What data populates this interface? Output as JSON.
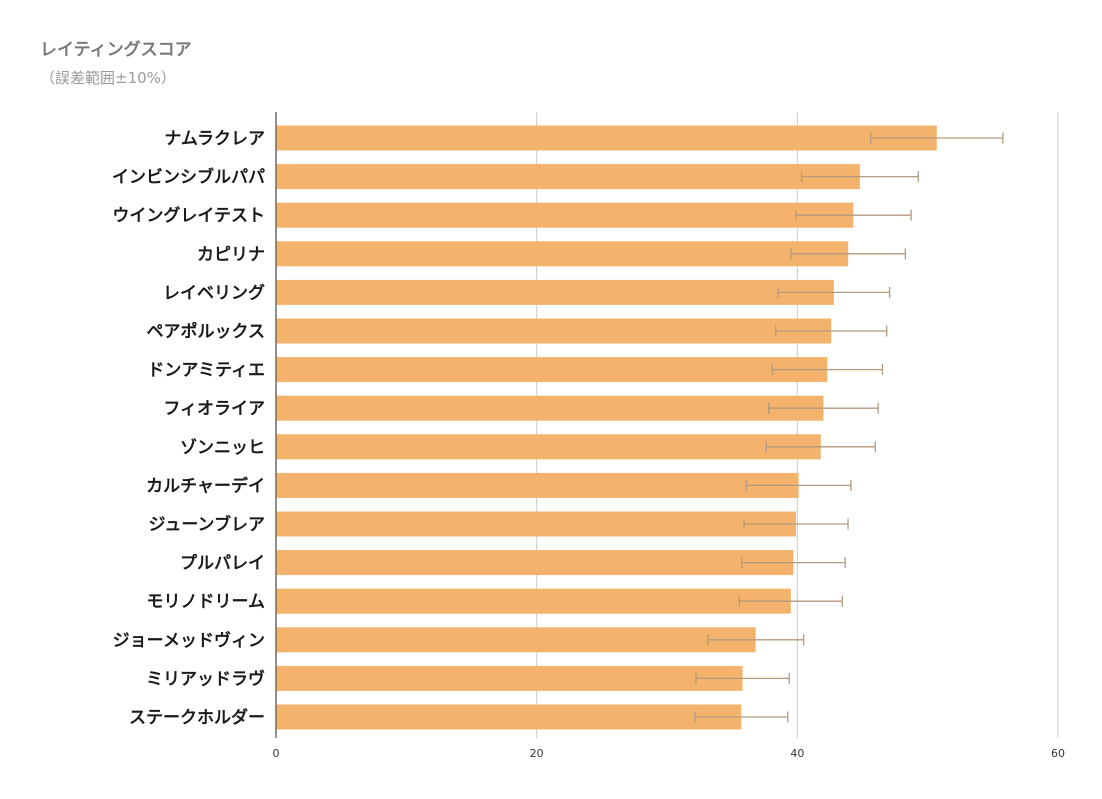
{
  "chart_title": "レイティングスコア",
  "chart_subtitle": "（誤差範囲±10%）",
  "chart_data": {
    "type": "bar",
    "orientation": "horizontal",
    "title": "レイティングスコア",
    "subtitle": "（誤差範囲±10%）",
    "xlabel": "",
    "ylabel": "",
    "xlim": [
      0,
      60
    ],
    "x_ticks": [
      0,
      20,
      40,
      60
    ],
    "grid": true,
    "bar_color": "#f4b36c",
    "error_bar_color": "#b49a7e",
    "error_percent": 10,
    "categories": [
      "ナムラクレア",
      "インビンシブルパパ",
      "ウイングレイテスト",
      "カピリナ",
      "レイベリング",
      "ペアポルックス",
      "ドンアミティエ",
      "フィオライア",
      "ゾンニッヒ",
      "カルチャーデイ",
      "ジューンブレア",
      "プルパレイ",
      "モリノドリーム",
      "ジョーメッドヴィン",
      "ミリアッドラヴ",
      "ステークホルダー"
    ],
    "values": [
      50.7,
      44.8,
      44.3,
      43.9,
      42.8,
      42.6,
      42.3,
      42.0,
      41.8,
      40.1,
      39.9,
      39.7,
      39.5,
      36.8,
      35.8,
      35.7
    ]
  }
}
